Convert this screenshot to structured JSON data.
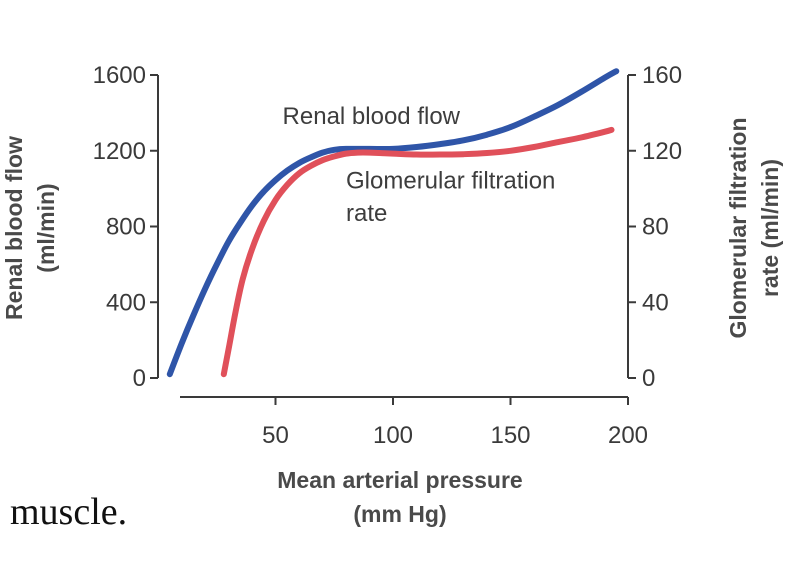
{
  "caption": "muscle.",
  "chart_data": {
    "type": "line",
    "xlabel": "Mean arterial pressure",
    "xlabel_unit": "(mm Hg)",
    "ylabel_left": "Renal blood flow",
    "ylabel_left_unit": "(ml/min)",
    "ylabel_right": "Glomerular filtration",
    "ylabel_right_unit": "rate (ml/min)",
    "xlim": [
      0,
      200
    ],
    "ylim_left": [
      0,
      1600
    ],
    "ylim_right": [
      0,
      160
    ],
    "x_ticks": [
      "50",
      "100",
      "150",
      "200"
    ],
    "x_tick_values": [
      50,
      100,
      150,
      200
    ],
    "y_left_ticks": [
      "0",
      "400",
      "800",
      "1200",
      "1600"
    ],
    "y_left_tick_values": [
      0,
      400,
      800,
      1200,
      1600
    ],
    "y_right_ticks": [
      "0",
      "40",
      "80",
      "120",
      "160"
    ],
    "y_right_tick_values": [
      0,
      40,
      80,
      120,
      160
    ],
    "grid": false,
    "series": [
      {
        "name": "Renal blood flow",
        "axis": "left",
        "color": "#2f55a8",
        "x": [
          5,
          10,
          15,
          20,
          25,
          30,
          35,
          40,
          45,
          50,
          55,
          60,
          65,
          70,
          75,
          80,
          90,
          100,
          110,
          120,
          130,
          140,
          150,
          160,
          170,
          180,
          190,
          195
        ],
        "y": [
          20,
          180,
          330,
          470,
          600,
          720,
          820,
          910,
          985,
          1045,
          1095,
          1135,
          1165,
          1190,
          1205,
          1210,
          1210,
          1210,
          1220,
          1235,
          1255,
          1285,
          1325,
          1380,
          1440,
          1510,
          1585,
          1620
        ]
      },
      {
        "name": "Glomerular filtration rate",
        "axis": "right",
        "color": "#e0505a",
        "x": [
          28,
          30,
          33,
          36,
          40,
          45,
          50,
          55,
          60,
          65,
          70,
          75,
          80,
          85,
          90,
          100,
          110,
          120,
          130,
          140,
          150,
          160,
          170,
          180,
          190,
          193
        ],
        "y": [
          2,
          15,
          35,
          52,
          68,
          83,
          94,
          102,
          108,
          112,
          115,
          117,
          118.5,
          119,
          119,
          118.5,
          118,
          118,
          118.2,
          118.8,
          120,
          122,
          124.5,
          127,
          130,
          131
        ]
      }
    ],
    "annotations": [
      {
        "text": "Renal blood flow",
        "x": 53,
        "y_left": 1340
      },
      {
        "text": "Glomerular filtration",
        "x": 80,
        "y_left": 1000
      },
      {
        "text": "rate",
        "x": 80,
        "y_left": 830
      }
    ]
  }
}
